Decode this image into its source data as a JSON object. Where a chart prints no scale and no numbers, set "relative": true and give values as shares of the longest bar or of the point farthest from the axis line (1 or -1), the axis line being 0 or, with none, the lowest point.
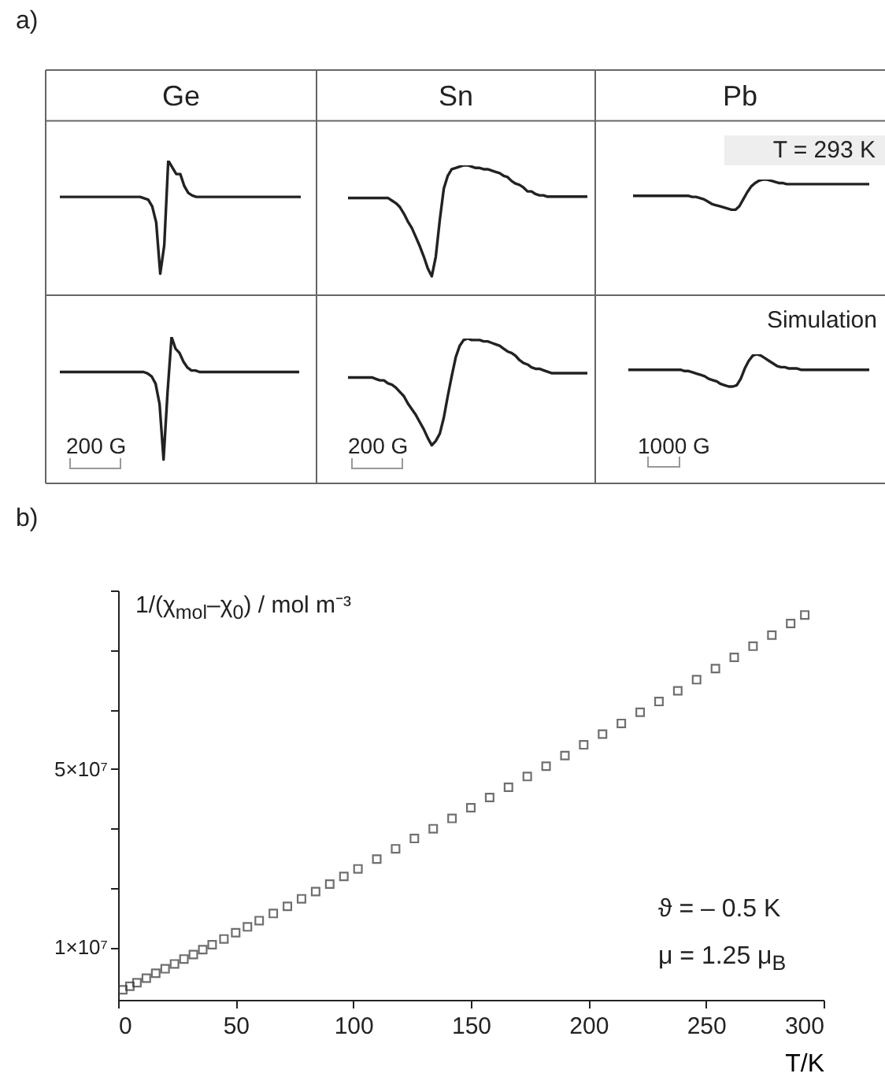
{
  "chart_data": [
    {
      "type": "line",
      "title": "Ge",
      "relative": true,
      "tick_labels": false,
      "annotations": [
        "a)"
      ],
      "categories": [
        null,
        null,
        null,
        null,
        null,
        null,
        null,
        null,
        null,
        null,
        null,
        null,
        null,
        null,
        null,
        null,
        null,
        null,
        null,
        null,
        null,
        null,
        null,
        null,
        null,
        null,
        null,
        null,
        null,
        null,
        null,
        null,
        null,
        null,
        null,
        null,
        null,
        null,
        null,
        null,
        null,
        null,
        null,
        null,
        null,
        null,
        null,
        null,
        null,
        null,
        null,
        null,
        null,
        null,
        null,
        null,
        null,
        null,
        null,
        null,
        null
      ],
      "series": [
        {
          "color": "#222222",
          "values": [
            0.73,
            0.73,
            0.73,
            0.73,
            0.73,
            0.73,
            0.73,
            0.73,
            0.73,
            0.73,
            0.73,
            0.73,
            0.73,
            0.73,
            0.73,
            0.73,
            0.73,
            0.73,
            0.73,
            0.73,
            0.73,
            0.72,
            0.71,
            0.66,
            0.54,
            0.16,
            0.37,
            1,
            0.95,
            0.9,
            0.9,
            0.81,
            0.76,
            0.74,
            0.73,
            0.73,
            0.73,
            0.73,
            0.73,
            0.73,
            0.73,
            0.73,
            0.73,
            0.73,
            0.73,
            0.73,
            0.73,
            0.73,
            0.73,
            0.73,
            0.73,
            0.73,
            0.73,
            0.73,
            0.73,
            0.73,
            0.73,
            0.73,
            0.73,
            0.73,
            0.73
          ]
        }
      ]
    },
    {
      "type": "line",
      "title": "Sn",
      "relative": true,
      "tick_labels": false,
      "categories": [
        null,
        null,
        null,
        null,
        null,
        null,
        null,
        null,
        null,
        null,
        null,
        null,
        null,
        null,
        null,
        null,
        null,
        null,
        null,
        null,
        null,
        null,
        null,
        null,
        null,
        null,
        null,
        null,
        null,
        null,
        null,
        null,
        null,
        null,
        null,
        null,
        null,
        null,
        null,
        null,
        null,
        null,
        null,
        null,
        null,
        null,
        null,
        null,
        null,
        null,
        null,
        null,
        null,
        null,
        null,
        null,
        null,
        null,
        null,
        null,
        null
      ],
      "series": [
        {
          "color": "#222222",
          "values": [
            0.75,
            0.75,
            0.75,
            0.75,
            0.75,
            0.75,
            0.75,
            0.75,
            0.75,
            0.75,
            0.75,
            0.73,
            0.71,
            0.68,
            0.63,
            0.57,
            0.52,
            0.45,
            0.38,
            0.3,
            0.21,
            0.15,
            0.3,
            0.58,
            0.82,
            0.92,
            0.97,
            0.98,
            0.99,
            1,
            1,
            0.99,
            0.98,
            0.98,
            0.97,
            0.97,
            0.96,
            0.95,
            0.94,
            0.92,
            0.91,
            0.88,
            0.86,
            0.85,
            0.83,
            0.8,
            0.8,
            0.78,
            0.77,
            0.77,
            0.76,
            0.76,
            0.76,
            0.76,
            0.76,
            0.76,
            0.76,
            0.76,
            0.76,
            0.76,
            0.76
          ]
        }
      ]
    },
    {
      "type": "line",
      "title": "Pb",
      "relative": true,
      "tick_labels": false,
      "annotations": [
        "T = 293 K"
      ],
      "categories": [
        null,
        null,
        null,
        null,
        null,
        null,
        null,
        null,
        null,
        null,
        null,
        null,
        null,
        null,
        null,
        null,
        null,
        null,
        null,
        null,
        null,
        null,
        null,
        null,
        null,
        null,
        null,
        null,
        null,
        null,
        null,
        null,
        null,
        null,
        null,
        null,
        null,
        null,
        null,
        null,
        null,
        null,
        null,
        null,
        null,
        null,
        null,
        null,
        null,
        null,
        null,
        null,
        null,
        null,
        null,
        null,
        null,
        null,
        null,
        null,
        null
      ],
      "series": [
        {
          "color": "#222222",
          "values": [
            0.86,
            0.86,
            0.86,
            0.86,
            0.86,
            0.86,
            0.86,
            0.86,
            0.86,
            0.86,
            0.86,
            0.86,
            0.86,
            0.86,
            0.86,
            0.85,
            0.85,
            0.84,
            0.83,
            0.81,
            0.79,
            0.78,
            0.77,
            0.76,
            0.75,
            0.74,
            0.74,
            0.77,
            0.83,
            0.89,
            0.94,
            0.97,
            0.99,
            1,
            1,
            0.99,
            0.98,
            0.97,
            0.97,
            0.96,
            0.96,
            0.96,
            0.96,
            0.96,
            0.96,
            0.96,
            0.96,
            0.96,
            0.96,
            0.96,
            0.96,
            0.96,
            0.96,
            0.96,
            0.96,
            0.96,
            0.96,
            0.96,
            0.96,
            0.96,
            0.96
          ]
        }
      ]
    },
    {
      "type": "line",
      "relative": true,
      "tick_labels": false,
      "annotations": [
        "200 G"
      ],
      "categories": [
        null,
        null,
        null,
        null,
        null,
        null,
        null,
        null,
        null,
        null,
        null,
        null,
        null,
        null,
        null,
        null,
        null,
        null,
        null,
        null,
        null,
        null,
        null,
        null,
        null,
        null,
        null,
        null,
        null,
        null,
        null,
        null,
        null,
        null,
        null,
        null,
        null,
        null,
        null,
        null,
        null,
        null,
        null,
        null,
        null,
        null,
        null,
        null,
        null,
        null,
        null,
        null,
        null,
        null,
        null,
        null,
        null,
        null,
        null,
        null,
        null
      ],
      "series": [
        {
          "color": "#222222",
          "values": [
            0.76,
            0.76,
            0.76,
            0.76,
            0.76,
            0.76,
            0.76,
            0.76,
            0.76,
            0.76,
            0.76,
            0.76,
            0.76,
            0.76,
            0.76,
            0.76,
            0.76,
            0.76,
            0.76,
            0.76,
            0.76,
            0.76,
            0.75,
            0.73,
            0.68,
            0.54,
            0.16,
            0.62,
            1,
            0.92,
            0.89,
            0.83,
            0.79,
            0.77,
            0.77,
            0.76,
            0.76,
            0.76,
            0.76,
            0.76,
            0.76,
            0.76,
            0.76,
            0.76,
            0.76,
            0.76,
            0.76,
            0.76,
            0.76,
            0.76,
            0.76,
            0.76,
            0.76,
            0.76,
            0.76,
            0.76,
            0.76,
            0.76,
            0.76,
            0.76,
            0.76
          ]
        }
      ]
    },
    {
      "type": "line",
      "relative": true,
      "tick_labels": false,
      "annotations": [
        "200 G"
      ],
      "categories": [
        null,
        null,
        null,
        null,
        null,
        null,
        null,
        null,
        null,
        null,
        null,
        null,
        null,
        null,
        null,
        null,
        null,
        null,
        null,
        null,
        null,
        null,
        null,
        null,
        null,
        null,
        null,
        null,
        null,
        null,
        null,
        null,
        null,
        null,
        null,
        null,
        null,
        null,
        null,
        null,
        null,
        null,
        null,
        null,
        null,
        null,
        null,
        null,
        null,
        null,
        null,
        null,
        null,
        null,
        null,
        null,
        null,
        null,
        null,
        null,
        null
      ],
      "series": [
        {
          "color": "#222222",
          "values": [
            0.73,
            0.73,
            0.73,
            0.73,
            0.73,
            0.73,
            0.73,
            0.72,
            0.71,
            0.71,
            0.69,
            0.68,
            0.66,
            0.63,
            0.6,
            0.55,
            0.51,
            0.47,
            0.42,
            0.37,
            0.31,
            0.26,
            0.29,
            0.34,
            0.45,
            0.6,
            0.74,
            0.87,
            0.95,
            0.99,
            1,
            0.99,
            0.99,
            0.99,
            0.98,
            0.98,
            0.97,
            0.96,
            0.95,
            0.93,
            0.91,
            0.9,
            0.88,
            0.85,
            0.83,
            0.82,
            0.8,
            0.79,
            0.79,
            0.78,
            0.77,
            0.76,
            0.76,
            0.76,
            0.76,
            0.76,
            0.76,
            0.76,
            0.76,
            0.76,
            0.76
          ]
        }
      ]
    },
    {
      "type": "line",
      "relative": true,
      "tick_labels": false,
      "annotations": [
        "Simulation",
        "1000 G"
      ],
      "categories": [
        null,
        null,
        null,
        null,
        null,
        null,
        null,
        null,
        null,
        null,
        null,
        null,
        null,
        null,
        null,
        null,
        null,
        null,
        null,
        null,
        null,
        null,
        null,
        null,
        null,
        null,
        null,
        null,
        null,
        null,
        null,
        null,
        null,
        null,
        null,
        null,
        null,
        null,
        null,
        null,
        null,
        null,
        null,
        null,
        null,
        null,
        null,
        null,
        null,
        null,
        null,
        null,
        null,
        null,
        null,
        null,
        null,
        null,
        null,
        null,
        null
      ],
      "series": [
        {
          "color": "#222222",
          "values": [
            0.88,
            0.88,
            0.88,
            0.88,
            0.88,
            0.88,
            0.88,
            0.88,
            0.88,
            0.88,
            0.88,
            0.88,
            0.88,
            0.88,
            0.87,
            0.87,
            0.86,
            0.85,
            0.84,
            0.83,
            0.81,
            0.8,
            0.79,
            0.77,
            0.76,
            0.75,
            0.75,
            0.76,
            0.81,
            0.89,
            0.95,
            0.99,
            1,
            0.99,
            0.97,
            0.95,
            0.93,
            0.91,
            0.9,
            0.9,
            0.89,
            0.89,
            0.89,
            0.88,
            0.88,
            0.88,
            0.88,
            0.88,
            0.88,
            0.88,
            0.88,
            0.88,
            0.88,
            0.88,
            0.88,
            0.88,
            0.88,
            0.88,
            0.88,
            0.88,
            0.88
          ]
        }
      ]
    },
    {
      "type": "scatter",
      "xlabel": "T/K",
      "ylabel": "1/(χ$_{mol}$–χ$_{0}$) / mol m⁻³",
      "annotations": [
        "b)",
        "ϑ = – 0.5 K",
        "μ = 1.25 μ$_{B}$"
      ],
      "marker": "square",
      "grid": false,
      "xlim": [
        0,
        300
      ],
      "xticks": [
        0,
        50,
        100,
        150,
        200,
        250,
        300
      ],
      "ylim": [
        -1750000,
        90000000
      ],
      "yticks": [
        {
          "value": 10000000,
          "label": "1×10⁷"
        },
        {
          "value": 23330000,
          "label": null
        },
        {
          "value": 36670000,
          "label": null
        },
        {
          "value": 50000000,
          "label": "5×10⁷"
        },
        {
          "value": 63330000,
          "label": null
        },
        {
          "value": 76670000,
          "label": null
        },
        {
          "value": 90000000,
          "label": null
        }
      ],
      "x": [
        2,
        5,
        8,
        12,
        16,
        20,
        24,
        28,
        32,
        36,
        40,
        45,
        50,
        55,
        60,
        66,
        72,
        78,
        84,
        90,
        96,
        102,
        110,
        118,
        126,
        134,
        142,
        150,
        158,
        166,
        174,
        182,
        190,
        198,
        206,
        214,
        222,
        230,
        238,
        246,
        254,
        262,
        270,
        278,
        286,
        292
      ],
      "series": [
        {
          "color": "#333333",
          "values": [
            500000,
            1300000,
            2100000,
            3100000,
            4200000,
            5200000,
            6300000,
            7400000,
            8400000,
            9500000,
            10600000,
            11900000,
            13300000,
            14600000,
            16000000,
            17600000,
            19200000,
            20900000,
            22500000,
            24200000,
            25900000,
            27600000,
            29800000,
            32100000,
            34400000,
            36600000,
            38900000,
            41300000,
            43600000,
            45900000,
            48300000,
            50600000,
            53000000,
            55400000,
            57800000,
            60200000,
            62700000,
            65100000,
            67500000,
            70000000,
            72500000,
            75000000,
            77500000,
            80000000,
            82600000,
            84500000
          ]
        }
      ]
    }
  ]
}
